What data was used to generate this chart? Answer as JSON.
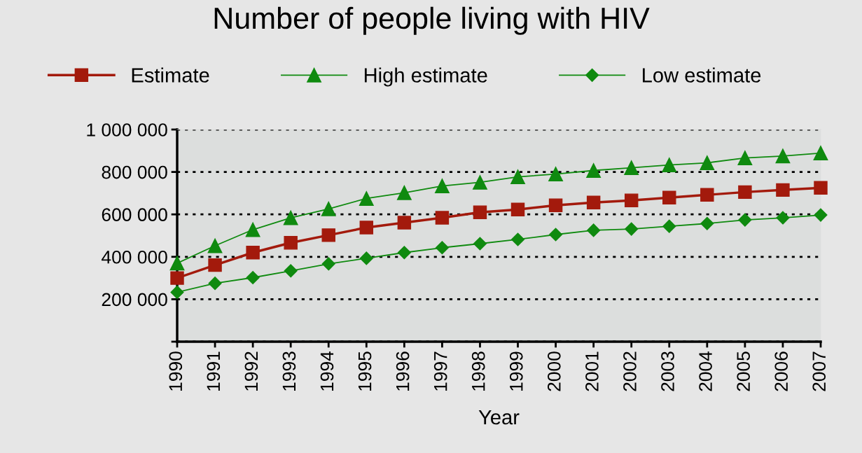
{
  "chart_data": {
    "type": "line",
    "title": "Number of people living with HIV",
    "xlabel": "Year",
    "categories": [
      "1990",
      "1991",
      "1992",
      "1993",
      "1994",
      "1995",
      "1996",
      "1997",
      "1998",
      "1999",
      "2000",
      "2001",
      "2002",
      "2003",
      "2004",
      "2005",
      "2006",
      "2007"
    ],
    "series": [
      {
        "name": "Estimate",
        "color": "#a31a0c",
        "marker": "square",
        "values": [
          300000,
          361000,
          420000,
          466000,
          502000,
          538000,
          561000,
          584000,
          610000,
          623000,
          643000,
          656000,
          666000,
          679000,
          692000,
          705000,
          715000,
          725000
        ]
      },
      {
        "name": "High estimate",
        "color": "#0f8a0f",
        "marker": "triangle",
        "values": [
          370000,
          452000,
          528000,
          584000,
          626000,
          675000,
          702000,
          734000,
          751000,
          777000,
          790000,
          807000,
          820000,
          833000,
          843000,
          866000,
          875000,
          889000
        ]
      },
      {
        "name": "Low estimate",
        "color": "#0f8a0f",
        "marker": "diamond",
        "values": [
          233000,
          275000,
          302000,
          334000,
          367000,
          393000,
          420000,
          443000,
          462000,
          482000,
          505000,
          525000,
          531000,
          544000,
          557000,
          574000,
          584000,
          597000
        ]
      }
    ],
    "ylim": [
      0,
      1000000
    ],
    "yticks": [
      {
        "value": 0,
        "label": null
      },
      {
        "value": 200000,
        "label": "200 000"
      },
      {
        "value": 400000,
        "label": "400 000"
      },
      {
        "value": 600000,
        "label": "600 000"
      },
      {
        "value": 800000,
        "label": "800 000"
      },
      {
        "value": 1000000,
        "label": "1 000 000"
      }
    ],
    "grid": "y",
    "legend": "top",
    "line_style": "solid"
  }
}
